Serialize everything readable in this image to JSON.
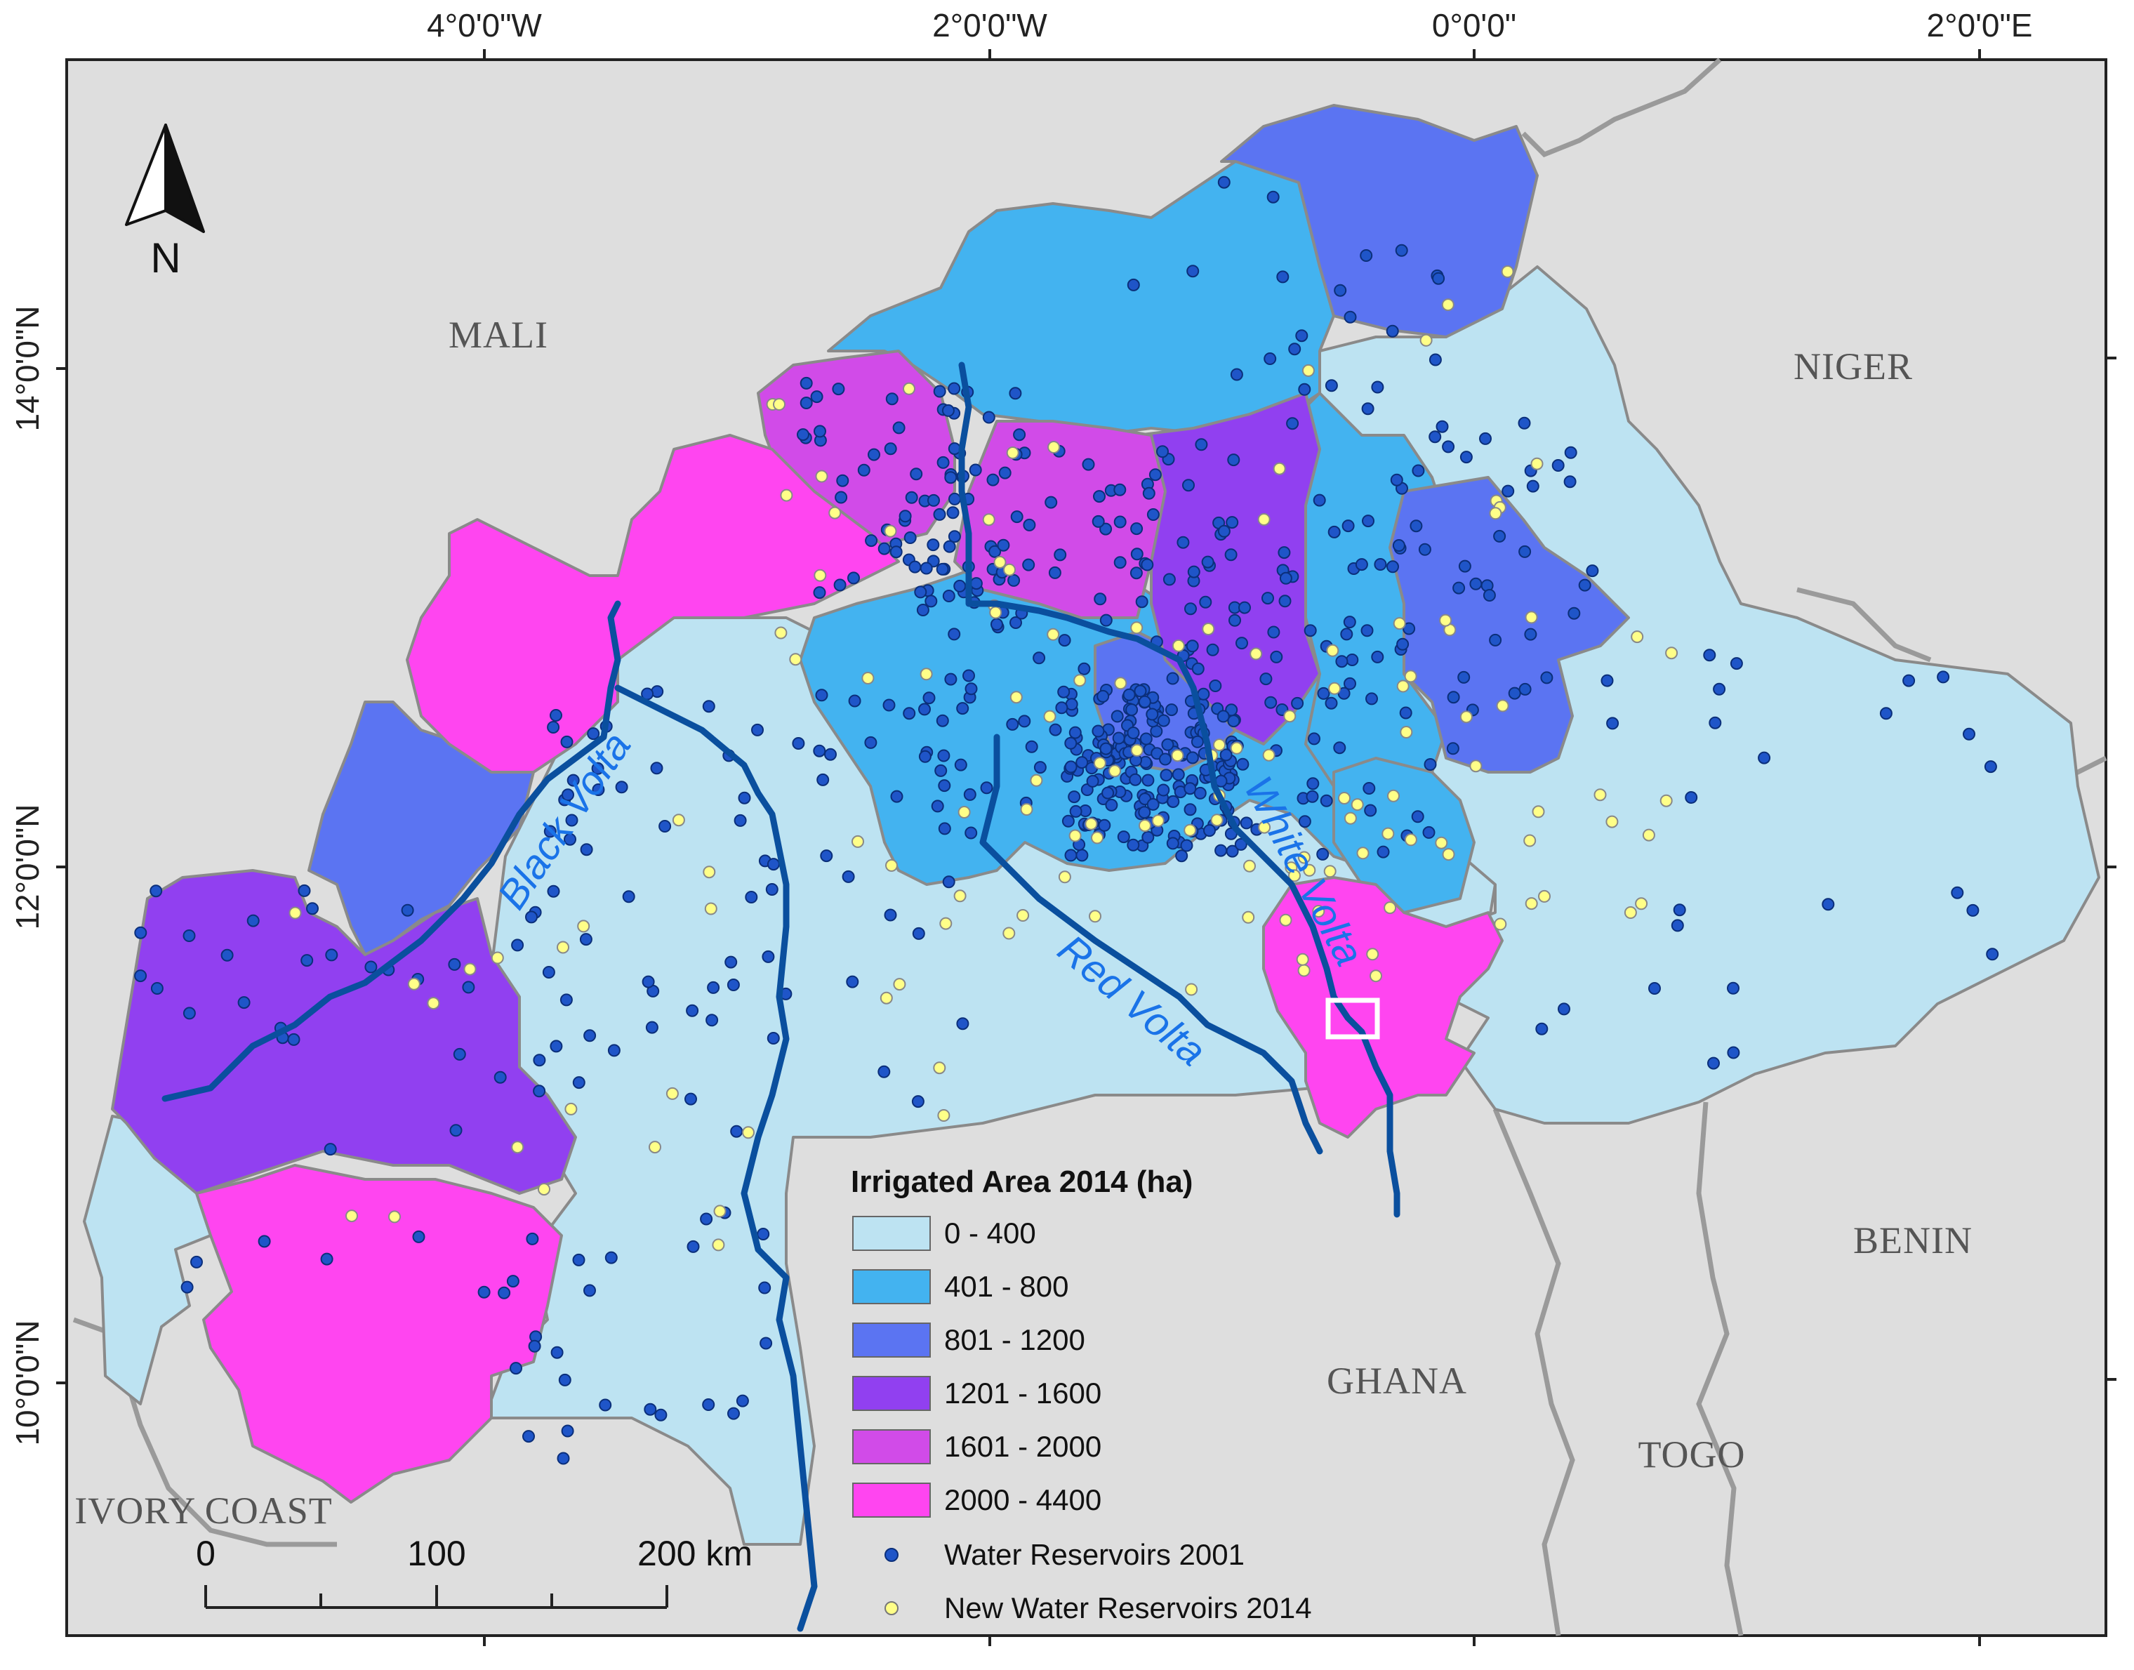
{
  "graticule": {
    "top_labels": [
      "4°0'0\"W",
      "2°0'0\"W",
      "0°0'0\"",
      "2°0'0\"E"
    ],
    "left_labels": [
      "14°0'0\"N",
      "12°0'0\"N",
      "10°0'0\"N"
    ]
  },
  "north_arrow": {
    "label": "N"
  },
  "countries": {
    "mali": "MALI",
    "niger": "NIGER",
    "benin": "BENIN",
    "ghana": "GHANA",
    "togo": "TOGO",
    "ivory_coast": "IVORY COAST"
  },
  "rivers": {
    "black": "Black Volta",
    "white": "White Volta",
    "red": "Red Volta"
  },
  "legend": {
    "title": "Irrigated Area 2014 (ha)",
    "classes": [
      {
        "label": "0 - 400",
        "color": "#bde3f2"
      },
      {
        "label": "401 - 800",
        "color": "#43b3f0"
      },
      {
        "label": "801 - 1200",
        "color": "#5b74f2"
      },
      {
        "label": "1201 - 1600",
        "color": "#9140f0"
      },
      {
        "label": "1601 - 2000",
        "color": "#d14be8"
      },
      {
        "label": "2000 - 4400",
        "color": "#ff45f0"
      }
    ],
    "points": [
      {
        "label": "Water Reservoirs 2001",
        "color": "#1f55c8"
      },
      {
        "label": "New Water Reservoirs 2014",
        "color": "#ffff88"
      }
    ]
  },
  "scale_bar": {
    "labels": [
      "0",
      "100",
      "200 km"
    ]
  },
  "colors": {
    "background": "#dedede",
    "border": "#999999",
    "river": "#0a4f9e"
  }
}
